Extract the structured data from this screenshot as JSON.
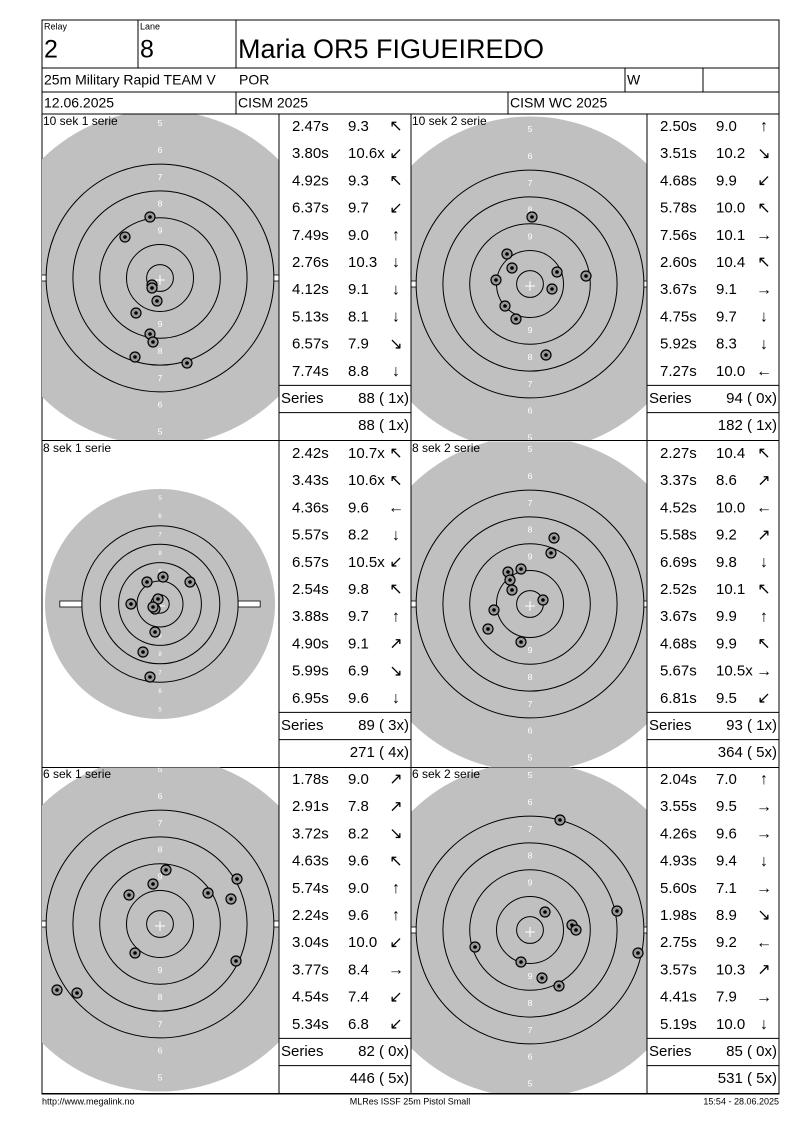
{
  "header": {
    "relay_label": "Relay",
    "relay": "2",
    "lane_label": "Lane",
    "lane": "8",
    "name": "Maria OR5 FIGUEIREDO",
    "event": "25m Military Rapid TEAM V",
    "nation": "POR",
    "gender": "W",
    "date": "12.06.2025",
    "competition": "CISM 2025",
    "match": "CISM WC 2025"
  },
  "ring_labels": [
    "5",
    "6",
    "7",
    "8",
    "9"
  ],
  "series_label": "Series",
  "panels": [
    {
      "title": "10 sek 1 serie",
      "shots": [
        [
          "2.47s",
          "9.3",
          "↖"
        ],
        [
          "3.80s",
          "10.6x",
          "↙"
        ],
        [
          "4.92s",
          "9.3",
          "↖"
        ],
        [
          "6.37s",
          "9.7",
          "↙"
        ],
        [
          "7.49s",
          "9.0",
          "↑"
        ],
        [
          "2.76s",
          "10.3",
          "↓"
        ],
        [
          "4.12s",
          "9.1",
          "↓"
        ],
        [
          "5.13s",
          "8.1",
          "↓"
        ],
        [
          "6.57s",
          "7.9",
          "↘"
        ],
        [
          "7.74s",
          "8.8",
          "↓"
        ]
      ],
      "series_total": "88 ( 1x)",
      "cumulative": "88 ( 1x)"
    },
    {
      "title": "10 sek 2 serie",
      "shots": [
        [
          "2.50s",
          "9.0",
          "↑"
        ],
        [
          "3.51s",
          "10.2",
          "↘"
        ],
        [
          "4.68s",
          "9.9",
          "↙"
        ],
        [
          "5.78s",
          "10.0",
          "↖"
        ],
        [
          "7.56s",
          "10.1",
          "→"
        ],
        [
          "2.60s",
          "10.4",
          "↖"
        ],
        [
          "3.67s",
          "9.1",
          "→"
        ],
        [
          "4.75s",
          "9.7",
          "↓"
        ],
        [
          "5.92s",
          "8.3",
          "↓"
        ],
        [
          "7.27s",
          "10.0",
          "←"
        ]
      ],
      "series_total": "94 ( 0x)",
      "cumulative": "182 ( 1x)"
    },
    {
      "title": "8 sek 1 serie",
      "shots": [
        [
          "2.42s",
          "10.7x",
          "↖"
        ],
        [
          "3.43s",
          "10.6x",
          "↖"
        ],
        [
          "4.36s",
          "9.6",
          "←"
        ],
        [
          "5.57s",
          "8.2",
          "↓"
        ],
        [
          "6.57s",
          "10.5x",
          "↙"
        ],
        [
          "2.54s",
          "9.8",
          "↖"
        ],
        [
          "3.88s",
          "9.7",
          "↑"
        ],
        [
          "4.90s",
          "9.1",
          "↗"
        ],
        [
          "5.99s",
          "6.9",
          "↘"
        ],
        [
          "6.95s",
          "9.6",
          "↓"
        ]
      ],
      "series_total": "89 ( 3x)",
      "cumulative": "271 ( 4x)"
    },
    {
      "title": "8 sek 2 serie",
      "shots": [
        [
          "2.27s",
          "10.4",
          "↖"
        ],
        [
          "3.37s",
          "8.6",
          "↗"
        ],
        [
          "4.52s",
          "10.0",
          "←"
        ],
        [
          "5.58s",
          "9.2",
          "↗"
        ],
        [
          "6.69s",
          "9.8",
          "↓"
        ],
        [
          "2.52s",
          "10.1",
          "↖"
        ],
        [
          "3.67s",
          "9.9",
          "↑"
        ],
        [
          "4.68s",
          "9.9",
          "↖"
        ],
        [
          "5.67s",
          "10.5x",
          "→"
        ],
        [
          "6.81s",
          "9.5",
          "↙"
        ]
      ],
      "series_total": "93 ( 1x)",
      "cumulative": "364 ( 5x)"
    },
    {
      "title": "6 sek 1 serie",
      "shots": [
        [
          "1.78s",
          "9.0",
          "↗"
        ],
        [
          "2.91s",
          "7.8",
          "↗"
        ],
        [
          "3.72s",
          "8.2",
          "↘"
        ],
        [
          "4.63s",
          "9.6",
          "↖"
        ],
        [
          "5.74s",
          "9.0",
          "↑"
        ],
        [
          "2.24s",
          "9.6",
          "↑"
        ],
        [
          "3.04s",
          "10.0",
          "↙"
        ],
        [
          "3.77s",
          "8.4",
          "→"
        ],
        [
          "4.54s",
          "7.4",
          "↙"
        ],
        [
          "5.34s",
          "6.8",
          "↙"
        ]
      ],
      "series_total": "82 ( 0x)",
      "cumulative": "446 ( 5x)"
    },
    {
      "title": "6 sek 2 serie",
      "shots": [
        [
          "2.04s",
          "7.0",
          "↑"
        ],
        [
          "3.55s",
          "9.5",
          "→"
        ],
        [
          "4.26s",
          "9.6",
          "→"
        ],
        [
          "4.93s",
          "9.4",
          "↓"
        ],
        [
          "5.60s",
          "7.1",
          "→"
        ],
        [
          "1.98s",
          "8.9",
          "↘"
        ],
        [
          "2.75s",
          "9.2",
          "←"
        ],
        [
          "3.57s",
          "10.3",
          "↗"
        ],
        [
          "4.41s",
          "7.9",
          "→"
        ],
        [
          "5.19s",
          "10.0",
          "↓"
        ]
      ],
      "series_total": "85 ( 0x)",
      "cumulative": "531 ( 5x)"
    }
  ],
  "footer": {
    "url": "http://www.megalink.no",
    "software": "MLRes ISSF 25m Pistol Small",
    "timestamp": "15:54 - 28.06.2025"
  }
}
